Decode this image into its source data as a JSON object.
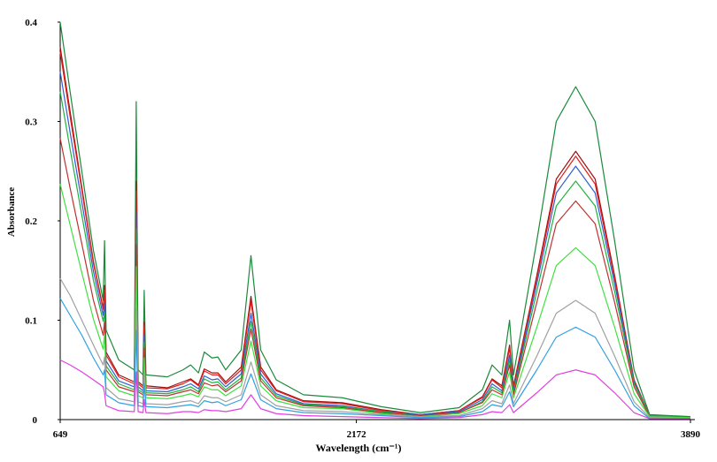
{
  "chart_data": {
    "type": "line",
    "x_label": "Wavelength (cm⁻¹)",
    "y_label": "Absorbance",
    "xlim": [
      649,
      3890
    ],
    "ylim": [
      0,
      0.4
    ],
    "xticks": [
      649,
      2172,
      3890
    ],
    "yticks": [
      0,
      0.1,
      0.2,
      0.3,
      0.4
    ],
    "grid": false,
    "x": [
      649,
      700,
      760,
      820,
      870,
      877,
      885,
      950,
      1030,
      1040,
      1050,
      1075,
      1081,
      1090,
      1200,
      1280,
      1320,
      1360,
      1390,
      1430,
      1460,
      1500,
      1580,
      1630,
      1680,
      1760,
      1900,
      2100,
      2300,
      2500,
      2700,
      2820,
      2870,
      2920,
      2960,
      2980,
      3100,
      3200,
      3300,
      3400,
      3500,
      3600,
      3680,
      3890
    ],
    "series": [
      {
        "color": "#1a8a3a",
        "values": [
          0.4,
          0.33,
          0.25,
          0.17,
          0.12,
          0.18,
          0.09,
          0.06,
          0.05,
          0.32,
          0.05,
          0.045,
          0.13,
          0.045,
          0.043,
          0.05,
          0.055,
          0.047,
          0.068,
          0.062,
          0.063,
          0.05,
          0.07,
          0.165,
          0.07,
          0.04,
          0.025,
          0.022,
          0.013,
          0.007,
          0.012,
          0.03,
          0.055,
          0.045,
          0.1,
          0.045,
          0.18,
          0.3,
          0.335,
          0.3,
          0.18,
          0.05,
          0.005,
          0.003
        ]
      },
      {
        "color": "#a01010",
        "values": [
          0.375,
          0.31,
          0.234,
          0.159,
          0.112,
          0.135,
          0.068,
          0.045,
          0.038,
          0.24,
          0.038,
          0.034,
          0.098,
          0.034,
          0.032,
          0.038,
          0.041,
          0.035,
          0.051,
          0.047,
          0.047,
          0.038,
          0.053,
          0.124,
          0.053,
          0.03,
          0.019,
          0.017,
          0.01,
          0.005,
          0.009,
          0.023,
          0.041,
          0.034,
          0.075,
          0.034,
          0.145,
          0.242,
          0.27,
          0.242,
          0.145,
          0.04,
          0.004,
          0.002
        ]
      },
      {
        "color": "#e02020",
        "values": [
          0.37,
          0.305,
          0.231,
          0.157,
          0.111,
          0.13,
          0.065,
          0.043,
          0.036,
          0.23,
          0.036,
          0.032,
          0.094,
          0.032,
          0.031,
          0.036,
          0.04,
          0.034,
          0.049,
          0.045,
          0.045,
          0.036,
          0.05,
          0.119,
          0.05,
          0.029,
          0.018,
          0.016,
          0.009,
          0.005,
          0.009,
          0.022,
          0.04,
          0.032,
          0.072,
          0.032,
          0.142,
          0.237,
          0.265,
          0.237,
          0.142,
          0.04,
          0.004,
          0.002
        ]
      },
      {
        "color": "#3060d0",
        "values": [
          0.35,
          0.289,
          0.219,
          0.149,
          0.105,
          0.117,
          0.059,
          0.039,
          0.033,
          0.208,
          0.033,
          0.029,
          0.085,
          0.029,
          0.028,
          0.033,
          0.036,
          0.031,
          0.044,
          0.04,
          0.041,
          0.033,
          0.046,
          0.107,
          0.046,
          0.026,
          0.016,
          0.014,
          0.008,
          0.005,
          0.008,
          0.02,
          0.036,
          0.029,
          0.065,
          0.029,
          0.137,
          0.228,
          0.255,
          0.228,
          0.137,
          0.038,
          0.004,
          0.002
        ]
      },
      {
        "color": "#20b040",
        "values": [
          0.33,
          0.272,
          0.206,
          0.14,
          0.099,
          0.108,
          0.054,
          0.036,
          0.03,
          0.192,
          0.03,
          0.027,
          0.078,
          0.027,
          0.026,
          0.03,
          0.033,
          0.028,
          0.041,
          0.037,
          0.038,
          0.03,
          0.042,
          0.099,
          0.042,
          0.024,
          0.015,
          0.013,
          0.008,
          0.004,
          0.007,
          0.018,
          0.033,
          0.027,
          0.06,
          0.027,
          0.129,
          0.215,
          0.24,
          0.215,
          0.129,
          0.036,
          0.004,
          0.002
        ]
      },
      {
        "color": "#c03030",
        "values": [
          0.283,
          0.233,
          0.177,
          0.12,
          0.085,
          0.099,
          0.05,
          0.033,
          0.028,
          0.176,
          0.028,
          0.025,
          0.072,
          0.025,
          0.024,
          0.028,
          0.03,
          0.026,
          0.037,
          0.034,
          0.035,
          0.028,
          0.039,
          0.091,
          0.039,
          0.022,
          0.014,
          0.012,
          0.007,
          0.004,
          0.007,
          0.017,
          0.03,
          0.025,
          0.055,
          0.025,
          0.118,
          0.197,
          0.22,
          0.197,
          0.118,
          0.033,
          0.003,
          0.002
        ]
      },
      {
        "color": "#40e040",
        "values": [
          0.237,
          0.196,
          0.148,
          0.101,
          0.071,
          0.086,
          0.043,
          0.029,
          0.024,
          0.154,
          0.024,
          0.022,
          0.062,
          0.022,
          0.021,
          0.024,
          0.026,
          0.023,
          0.033,
          0.03,
          0.03,
          0.024,
          0.034,
          0.079,
          0.034,
          0.019,
          0.012,
          0.011,
          0.006,
          0.003,
          0.006,
          0.014,
          0.026,
          0.022,
          0.048,
          0.022,
          0.093,
          0.155,
          0.173,
          0.155,
          0.093,
          0.026,
          0.003,
          0.002
        ]
      },
      {
        "color": "#a0a0a0",
        "values": [
          0.142,
          0.125,
          0.1,
          0.075,
          0.055,
          0.063,
          0.032,
          0.021,
          0.018,
          0.112,
          0.018,
          0.016,
          0.046,
          0.016,
          0.015,
          0.018,
          0.019,
          0.016,
          0.024,
          0.022,
          0.022,
          0.018,
          0.025,
          0.058,
          0.025,
          0.014,
          0.009,
          0.008,
          0.005,
          0.003,
          0.004,
          0.011,
          0.019,
          0.016,
          0.035,
          0.016,
          0.064,
          0.107,
          0.12,
          0.107,
          0.064,
          0.018,
          0.002,
          0.001
        ]
      },
      {
        "color": "#30a0e0",
        "values": [
          0.122,
          0.105,
          0.085,
          0.062,
          0.045,
          0.05,
          0.025,
          0.017,
          0.014,
          0.09,
          0.014,
          0.013,
          0.036,
          0.013,
          0.012,
          0.014,
          0.015,
          0.013,
          0.019,
          0.017,
          0.018,
          0.014,
          0.02,
          0.046,
          0.02,
          0.011,
          0.007,
          0.006,
          0.004,
          0.002,
          0.003,
          0.008,
          0.015,
          0.013,
          0.028,
          0.013,
          0.05,
          0.083,
          0.093,
          0.083,
          0.05,
          0.014,
          0.001,
          0.001
        ]
      },
      {
        "color": "#e040e0",
        "values": [
          0.06,
          0.055,
          0.048,
          0.04,
          0.033,
          0.027,
          0.014,
          0.009,
          0.008,
          0.048,
          0.008,
          0.007,
          0.02,
          0.007,
          0.006,
          0.008,
          0.008,
          0.007,
          0.01,
          0.009,
          0.009,
          0.008,
          0.011,
          0.025,
          0.011,
          0.006,
          0.004,
          0.003,
          0.002,
          0.001,
          0.002,
          0.005,
          0.008,
          0.007,
          0.015,
          0.007,
          0.027,
          0.045,
          0.05,
          0.045,
          0.027,
          0.007,
          0.001,
          0.001
        ]
      }
    ]
  }
}
